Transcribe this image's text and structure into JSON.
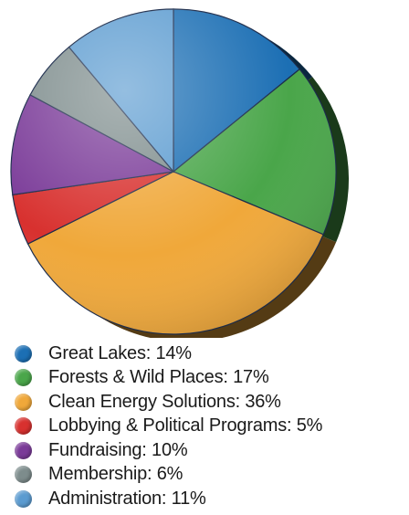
{
  "chart_data": {
    "type": "pie",
    "title": "",
    "slices": [
      {
        "label": "Great Lakes: 14%",
        "name": "Great Lakes",
        "value": 14,
        "color": "#1c6fb4"
      },
      {
        "label": "Forests & Wild Places: 17%",
        "name": "Forests & Wild Places",
        "value": 17,
        "color": "#4aa64a"
      },
      {
        "label": "Clean Energy Solutions: 36%",
        "name": "Clean Energy Solutions",
        "value": 36,
        "color": "#f0a83a"
      },
      {
        "label": "Lobbying & Political Programs: 5%",
        "name": "Lobbying & Political Programs",
        "value": 5,
        "color": "#d8312f"
      },
      {
        "label": "Fundraising: 10%",
        "name": "Fundraising",
        "value": 10,
        "color": "#7a3a98"
      },
      {
        "label": "Membership: 6%",
        "name": "Membership",
        "value": 6,
        "color": "#7d8c8c"
      },
      {
        "label": "Administration: 11%",
        "name": "Administration",
        "value": 11,
        "color": "#5b9bd0"
      }
    ],
    "legend_position": "bottom-left"
  }
}
